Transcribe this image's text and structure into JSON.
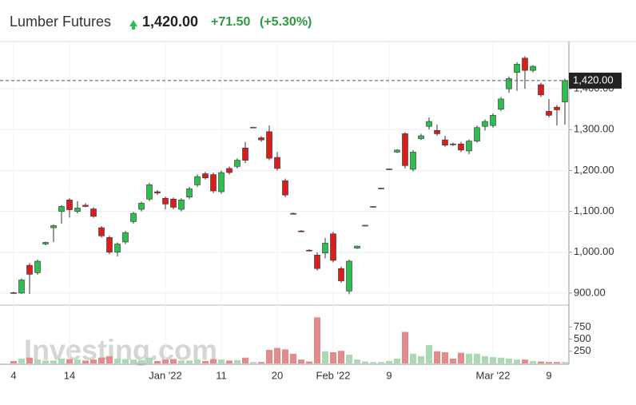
{
  "chart_data": {
    "type": "candlestick",
    "title": "Lumber Futures",
    "price": "1,420.00",
    "change": "+71.50",
    "change_pct": "(+5.30%)",
    "last_label": "1,420.00",
    "last": 1420,
    "watermark": "Investing.com",
    "up_color": "#2ebd4e",
    "down_color": "#d91e1e",
    "vol_up_color": "#a9d9b5",
    "vol_down_color": "#e58a8a",
    "categories": [
      "4",
      null,
      null,
      null,
      null,
      null,
      null,
      "14",
      null,
      null,
      null,
      null,
      null,
      null,
      null,
      null,
      null,
      null,
      null,
      "Jan '22",
      null,
      null,
      null,
      null,
      null,
      null,
      "11",
      null,
      null,
      null,
      null,
      null,
      null,
      "20",
      null,
      null,
      null,
      null,
      null,
      null,
      "Feb '22",
      null,
      null,
      null,
      null,
      null,
      null,
      "9",
      null,
      null,
      null,
      null,
      null,
      null,
      null,
      null,
      null,
      null,
      null,
      null,
      "Mar '22",
      null,
      null,
      null,
      null,
      null,
      null,
      "9",
      null,
      null
    ],
    "candles": [
      {
        "open": 901,
        "high": 903,
        "low": 899,
        "close": 900
      },
      {
        "open": 900,
        "high": 936,
        "low": 898,
        "close": 932
      },
      {
        "open": 968,
        "high": 973,
        "low": 898,
        "close": 946
      },
      {
        "open": 950,
        "high": 982,
        "low": 945,
        "close": 978
      },
      {
        "open": 1020,
        "high": 1026,
        "low": 1017,
        "close": 1024
      },
      {
        "open": 1060,
        "high": 1068,
        "low": 1025,
        "close": 1065
      },
      {
        "open": 1100,
        "high": 1115,
        "low": 1070,
        "close": 1112
      },
      {
        "open": 1128,
        "high": 1132,
        "low": 1085,
        "close": 1104
      },
      {
        "open": 1100,
        "high": 1125,
        "low": 1095,
        "close": 1108
      },
      {
        "open": 1115,
        "high": 1120,
        "low": 1110,
        "close": 1112
      },
      {
        "open": 1106,
        "high": 1110,
        "low": 1084,
        "close": 1088
      },
      {
        "open": 1060,
        "high": 1064,
        "low": 1036,
        "close": 1040
      },
      {
        "open": 1036,
        "high": 1040,
        "low": 995,
        "close": 1000
      },
      {
        "open": 1000,
        "high": 1024,
        "low": 990,
        "close": 1020
      },
      {
        "open": 1025,
        "high": 1052,
        "low": 1020,
        "close": 1048
      },
      {
        "open": 1075,
        "high": 1099,
        "low": 1070,
        "close": 1095
      },
      {
        "open": 1105,
        "high": 1124,
        "low": 1100,
        "close": 1120
      },
      {
        "open": 1130,
        "high": 1170,
        "low": 1125,
        "close": 1165
      },
      {
        "open": 1148,
        "high": 1152,
        "low": 1140,
        "close": 1145
      },
      {
        "open": 1132,
        "high": 1136,
        "low": 1105,
        "close": 1118
      },
      {
        "open": 1130,
        "high": 1134,
        "low": 1105,
        "close": 1110
      },
      {
        "open": 1105,
        "high": 1132,
        "low": 1100,
        "close": 1128
      },
      {
        "open": 1135,
        "high": 1160,
        "low": 1130,
        "close": 1155
      },
      {
        "open": 1165,
        "high": 1190,
        "low": 1160,
        "close": 1185
      },
      {
        "open": 1192,
        "high": 1197,
        "low": 1178,
        "close": 1182
      },
      {
        "open": 1190,
        "high": 1195,
        "low": 1145,
        "close": 1150
      },
      {
        "open": 1148,
        "high": 1200,
        "low": 1143,
        "close": 1195
      },
      {
        "open": 1205,
        "high": 1210,
        "low": 1190,
        "close": 1195
      },
      {
        "open": 1210,
        "high": 1230,
        "low": 1205,
        "close": 1225
      },
      {
        "open": 1255,
        "high": 1270,
        "low": 1218,
        "close": 1225
      },
      {
        "open": 1305,
        "high": 1307,
        "low": 1304,
        "close": 1306
      },
      {
        "open": 1280,
        "high": 1284,
        "low": 1270,
        "close": 1275
      },
      {
        "open": 1295,
        "high": 1310,
        "low": 1225,
        "close": 1230
      },
      {
        "open": 1232,
        "high": 1245,
        "low": 1200,
        "close": 1205
      },
      {
        "open": 1175,
        "high": 1180,
        "low": 1135,
        "close": 1140
      },
      {
        "open": 1095,
        "high": 1097,
        "low": 1092,
        "close": 1093
      },
      {
        "open": 1052,
        "high": 1054,
        "low": 1049,
        "close": 1050
      },
      {
        "open": 1005,
        "high": 1007,
        "low": 1002,
        "close": 1003
      },
      {
        "open": 993,
        "high": 1000,
        "low": 955,
        "close": 960
      },
      {
        "open": 998,
        "high": 1035,
        "low": 985,
        "close": 1022
      },
      {
        "open": 1045,
        "high": 1050,
        "low": 975,
        "close": 980
      },
      {
        "open": 960,
        "high": 965,
        "low": 925,
        "close": 930
      },
      {
        "open": 905,
        "high": 982,
        "low": 897,
        "close": 978
      },
      {
        "open": 1010,
        "high": 1016,
        "low": 1008,
        "close": 1015
      },
      {
        "open": 1064,
        "high": 1067,
        "low": 1063,
        "close": 1066
      },
      {
        "open": 1110,
        "high": 1113,
        "low": 1109,
        "close": 1112
      },
      {
        "open": 1155,
        "high": 1158,
        "low": 1154,
        "close": 1157
      },
      {
        "open": 1202,
        "high": 1205,
        "low": 1201,
        "close": 1204
      },
      {
        "open": 1245,
        "high": 1252,
        "low": 1243,
        "close": 1250
      },
      {
        "open": 1290,
        "high": 1294,
        "low": 1205,
        "close": 1212
      },
      {
        "open": 1203,
        "high": 1250,
        "low": 1198,
        "close": 1245
      },
      {
        "open": 1278,
        "high": 1290,
        "low": 1275,
        "close": 1285
      },
      {
        "open": 1308,
        "high": 1330,
        "low": 1300,
        "close": 1320
      },
      {
        "open": 1298,
        "high": 1312,
        "low": 1285,
        "close": 1290
      },
      {
        "open": 1275,
        "high": 1285,
        "low": 1258,
        "close": 1262
      },
      {
        "open": 1265,
        "high": 1268,
        "low": 1260,
        "close": 1263
      },
      {
        "open": 1265,
        "high": 1270,
        "low": 1245,
        "close": 1250
      },
      {
        "open": 1248,
        "high": 1276,
        "low": 1240,
        "close": 1272
      },
      {
        "open": 1272,
        "high": 1310,
        "low": 1268,
        "close": 1305
      },
      {
        "open": 1308,
        "high": 1325,
        "low": 1298,
        "close": 1320
      },
      {
        "open": 1310,
        "high": 1340,
        "low": 1305,
        "close": 1335
      },
      {
        "open": 1350,
        "high": 1380,
        "low": 1345,
        "close": 1375
      },
      {
        "open": 1400,
        "high": 1430,
        "low": 1390,
        "close": 1425
      },
      {
        "open": 1440,
        "high": 1465,
        "low": 1395,
        "close": 1460
      },
      {
        "open": 1475,
        "high": 1480,
        "low": 1400,
        "close": 1445
      },
      {
        "open": 1445,
        "high": 1458,
        "low": 1440,
        "close": 1455
      },
      {
        "open": 1410,
        "high": 1415,
        "low": 1380,
        "close": 1385
      },
      {
        "open": 1345,
        "high": 1375,
        "low": 1330,
        "close": 1335
      },
      {
        "open": 1355,
        "high": 1360,
        "low": 1310,
        "close": 1348.5
      },
      {
        "open": 1368,
        "high": 1425,
        "low": 1312,
        "close": 1420
      }
    ],
    "volume": [
      50,
      100,
      120,
      80,
      60,
      60,
      100,
      90,
      80,
      60,
      80,
      120,
      150,
      100,
      90,
      80,
      70,
      120,
      50,
      80,
      90,
      60,
      60,
      80,
      50,
      90,
      80,
      60,
      70,
      120,
      30,
      30,
      280,
      320,
      290,
      200,
      80,
      40,
      950,
      250,
      230,
      260,
      180,
      80,
      40,
      30,
      30,
      50,
      100,
      650,
      200,
      150,
      380,
      250,
      230,
      100,
      220,
      200,
      200,
      150,
      130,
      120,
      100,
      80,
      80,
      50,
      40,
      30,
      30,
      30
    ],
    "ylim": [
      890,
      1500
    ],
    "yticks": [
      {
        "value": 900,
        "label": "900.00"
      },
      {
        "value": 1000,
        "label": "1,000.00"
      },
      {
        "value": 1100,
        "label": "1,100.00"
      },
      {
        "value": 1200,
        "label": "1,200.00"
      },
      {
        "value": 1300,
        "label": "1,300.00"
      },
      {
        "value": 1400,
        "label": "1,400.00"
      }
    ],
    "vlim": [
      0,
      1200
    ],
    "vticks": [
      250,
      500,
      750
    ],
    "grid": true
  }
}
